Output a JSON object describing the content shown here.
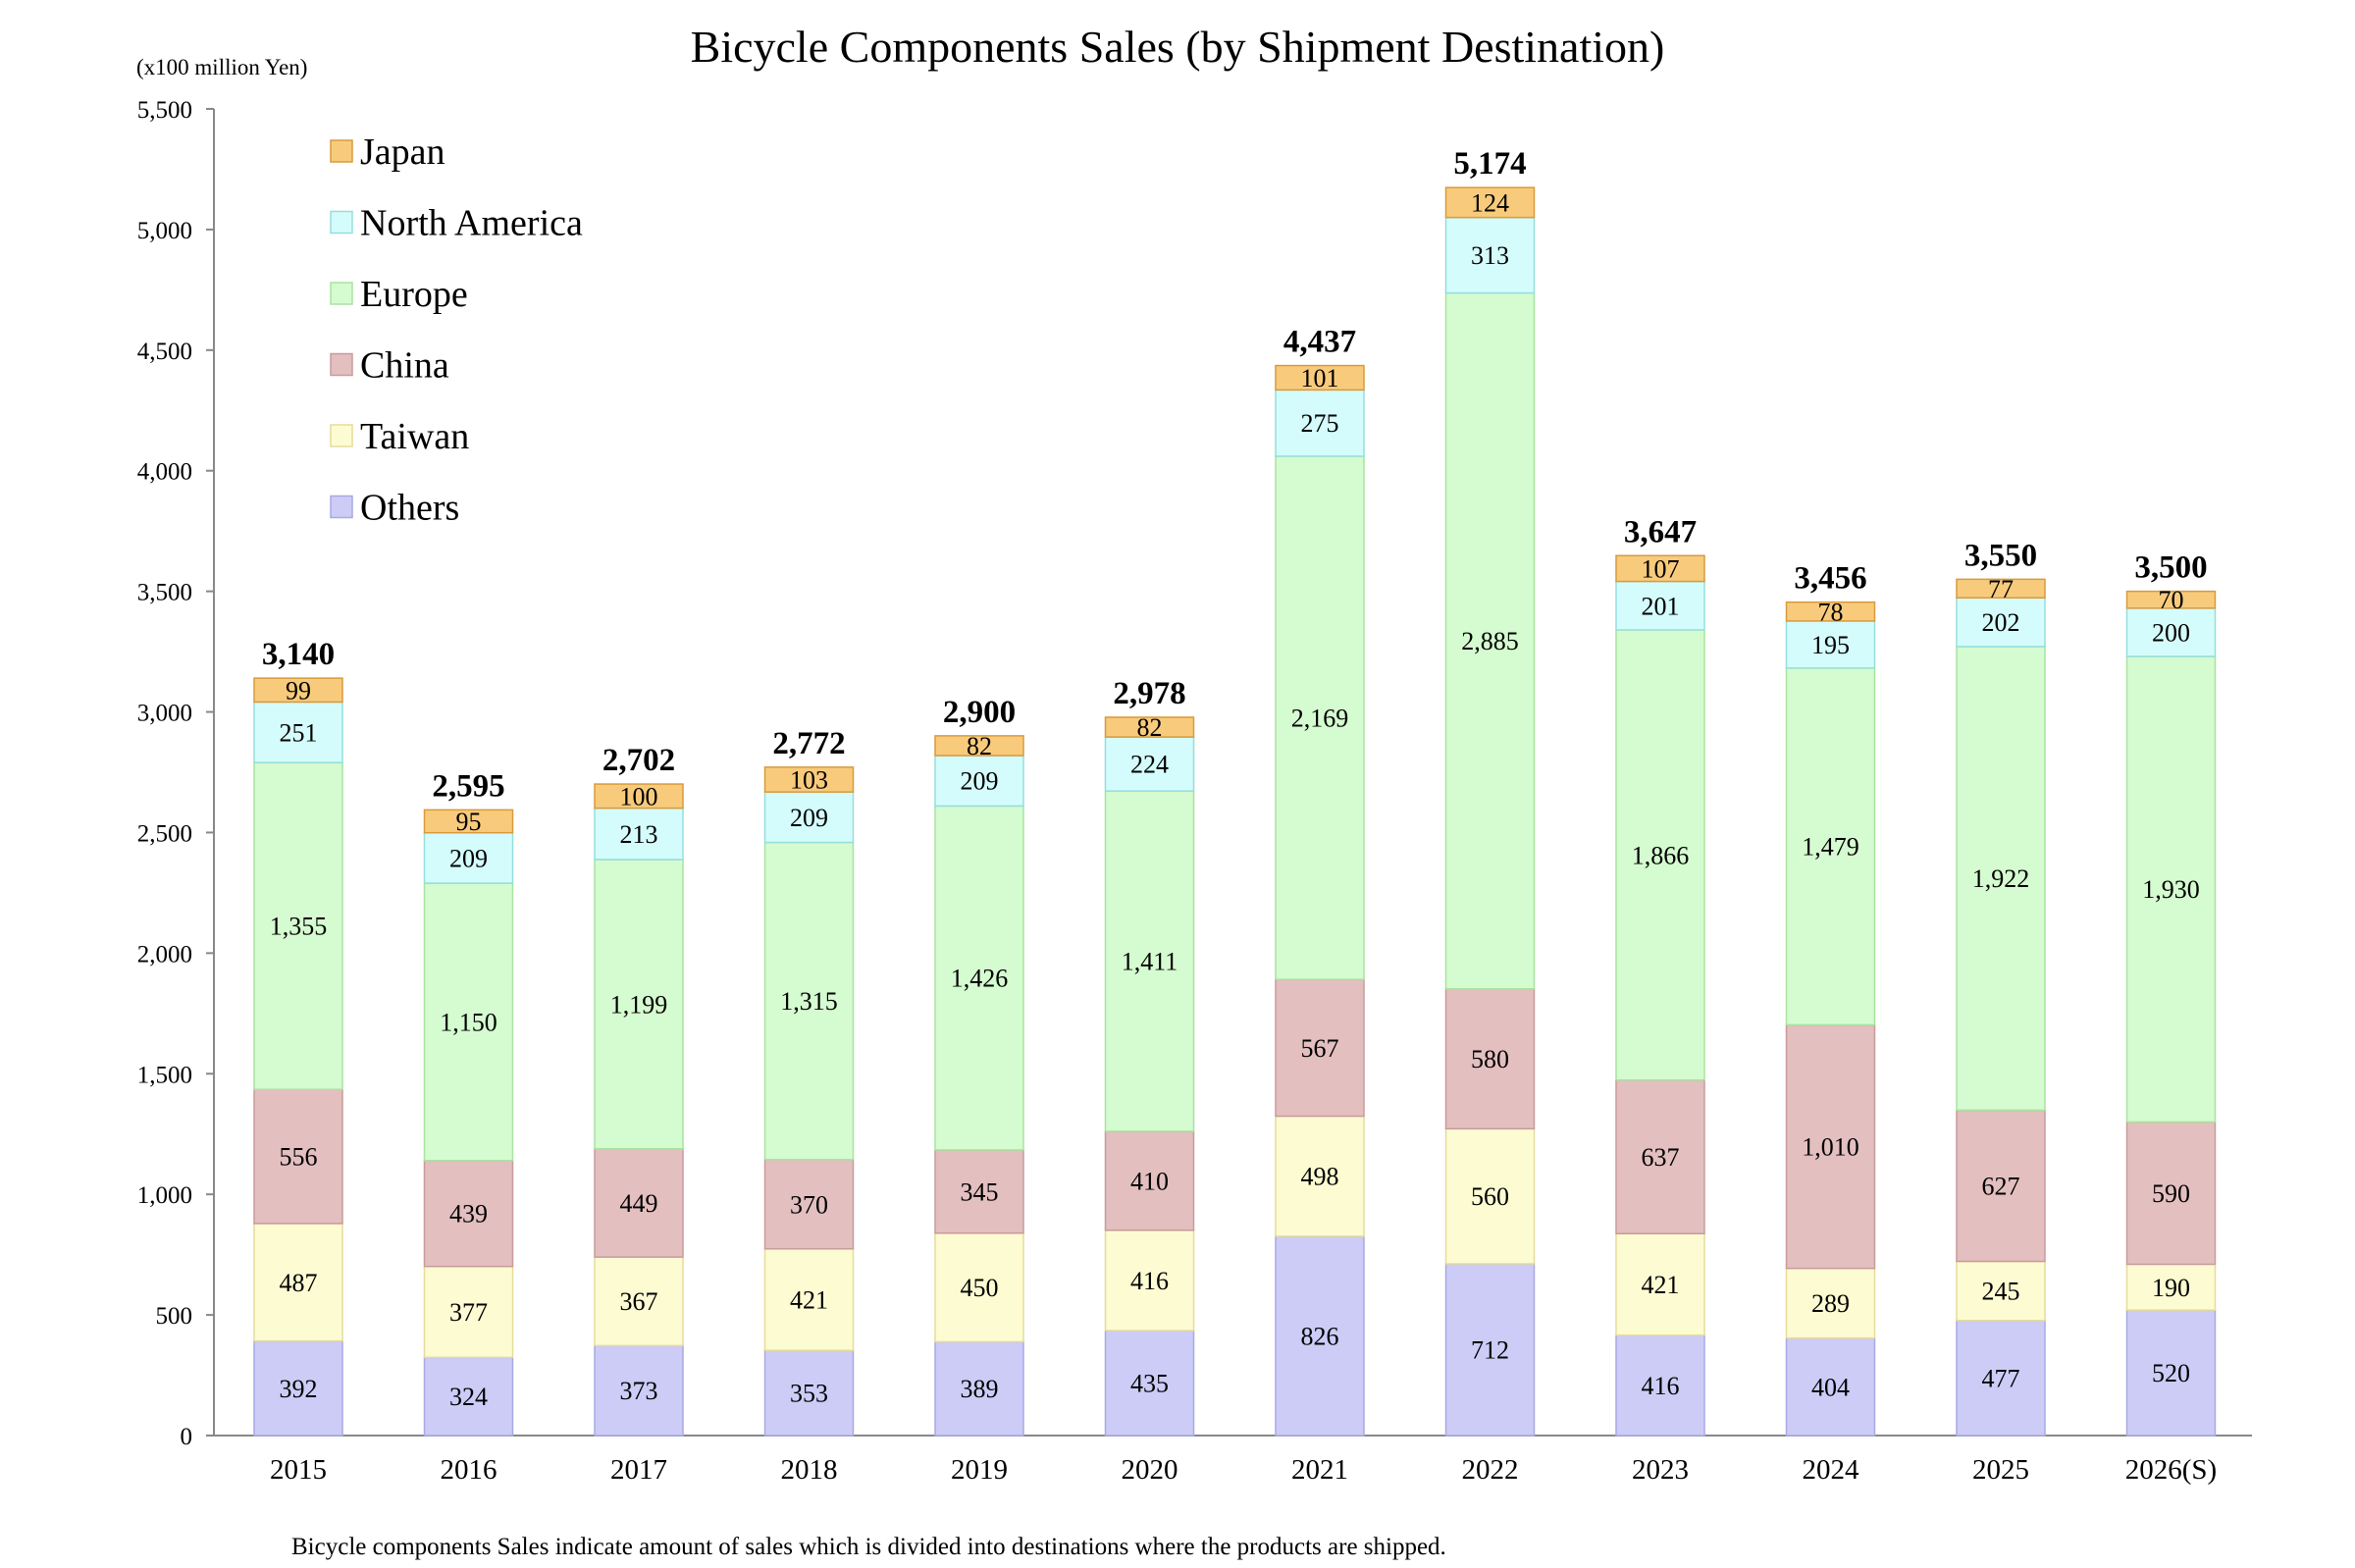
{
  "chart_data": {
    "type": "bar",
    "stacked": true,
    "title": "Bicycle Components Sales (by Shipment Destination)",
    "unit_label": "(x100 million Yen)",
    "footnote": "Bicycle components Sales indicate amount of sales which is divided into destinations where the products are shipped.",
    "ylim": [
      0,
      5500
    ],
    "yticks": [
      {
        "value": 0,
        "label": "0"
      },
      {
        "value": 500,
        "label": "500"
      },
      {
        "value": 1000,
        "label": "1,000"
      },
      {
        "value": 1500,
        "label": "1,500"
      },
      {
        "value": 2000,
        "label": "2,000"
      },
      {
        "value": 2500,
        "label": "2,500"
      },
      {
        "value": 3000,
        "label": "3,000"
      },
      {
        "value": 3500,
        "label": "3,500"
      },
      {
        "value": 4000,
        "label": "4,000"
      },
      {
        "value": 4500,
        "label": "4,500"
      },
      {
        "value": 5000,
        "label": "5,000"
      },
      {
        "value": 5500,
        "label": "5,500"
      }
    ],
    "grid": false,
    "legend_position": "top-left",
    "categories": [
      "2015",
      "2016",
      "2017",
      "2018",
      "2019",
      "2020",
      "2021",
      "2022",
      "2023",
      "2024",
      "2025",
      "2026(S)"
    ],
    "series": [
      {
        "name": "Others",
        "color": "#ccccf7",
        "border": "#a9a9e3",
        "values": [
          392,
          324,
          373,
          353,
          389,
          435,
          826,
          712,
          416,
          404,
          477,
          520
        ]
      },
      {
        "name": "Taiwan",
        "color": "#fdfbd2",
        "border": "#e6dc9a",
        "values": [
          487,
          377,
          367,
          421,
          450,
          416,
          498,
          560,
          421,
          289,
          245,
          190
        ]
      },
      {
        "name": "China",
        "color": "#e3bfbf",
        "border": "#c99b9b",
        "values": [
          556,
          439,
          449,
          370,
          345,
          410,
          567,
          580,
          637,
          1010,
          627,
          590
        ]
      },
      {
        "name": "Europe",
        "color": "#d5fbd0",
        "border": "#a9e3a0",
        "values": [
          1355,
          1150,
          1199,
          1315,
          1426,
          1411,
          2169,
          2885,
          1866,
          1479,
          1922,
          1930
        ]
      },
      {
        "name": "North America",
        "color": "#d5fcfc",
        "border": "#95dede",
        "values": [
          251,
          209,
          213,
          209,
          209,
          224,
          275,
          313,
          201,
          195,
          202,
          200
        ]
      },
      {
        "name": "Japan",
        "color": "#f8cb7c",
        "border": "#d99a3c",
        "values": [
          99,
          95,
          100,
          103,
          82,
          82,
          101,
          124,
          107,
          78,
          77,
          70
        ]
      }
    ],
    "legend_order": [
      "Japan",
      "North America",
      "Europe",
      "China",
      "Taiwan",
      "Others"
    ],
    "segment_labels": [
      [
        "392",
        "324",
        "373",
        "353",
        "389",
        "435",
        "826",
        "712",
        "416",
        "404",
        "477",
        "520"
      ],
      [
        "487",
        "377",
        "367",
        "421",
        "450",
        "416",
        "498",
        "560",
        "421",
        "289",
        "245",
        "190"
      ],
      [
        "556",
        "439",
        "449",
        "370",
        "345",
        "410",
        "567",
        "580",
        "637",
        "1,010",
        "627",
        "590"
      ],
      [
        "1,355",
        "1,150",
        "1,199",
        "1,315",
        "1,426",
        "1,411",
        "2,169",
        "2,885",
        "1,866",
        "1,479",
        "1,922",
        "1,930"
      ],
      [
        "251",
        "209",
        "213",
        "209",
        "209",
        "224",
        "275",
        "313",
        "201",
        "195",
        "202",
        "200"
      ],
      [
        "99",
        "95",
        "100",
        "103",
        "82",
        "82",
        "101",
        "124",
        "107",
        "78",
        "77",
        "70"
      ]
    ],
    "totals": [
      3140,
      2595,
      2702,
      2772,
      2900,
      2978,
      4437,
      5174,
      3647,
      3456,
      3550,
      3500
    ],
    "total_labels": [
      "3,140",
      "2,595",
      "2,702",
      "2,772",
      "2,900",
      "2,978",
      "4,437",
      "5,174",
      "3,647",
      "3,456",
      "3,550",
      "3,500"
    ]
  }
}
